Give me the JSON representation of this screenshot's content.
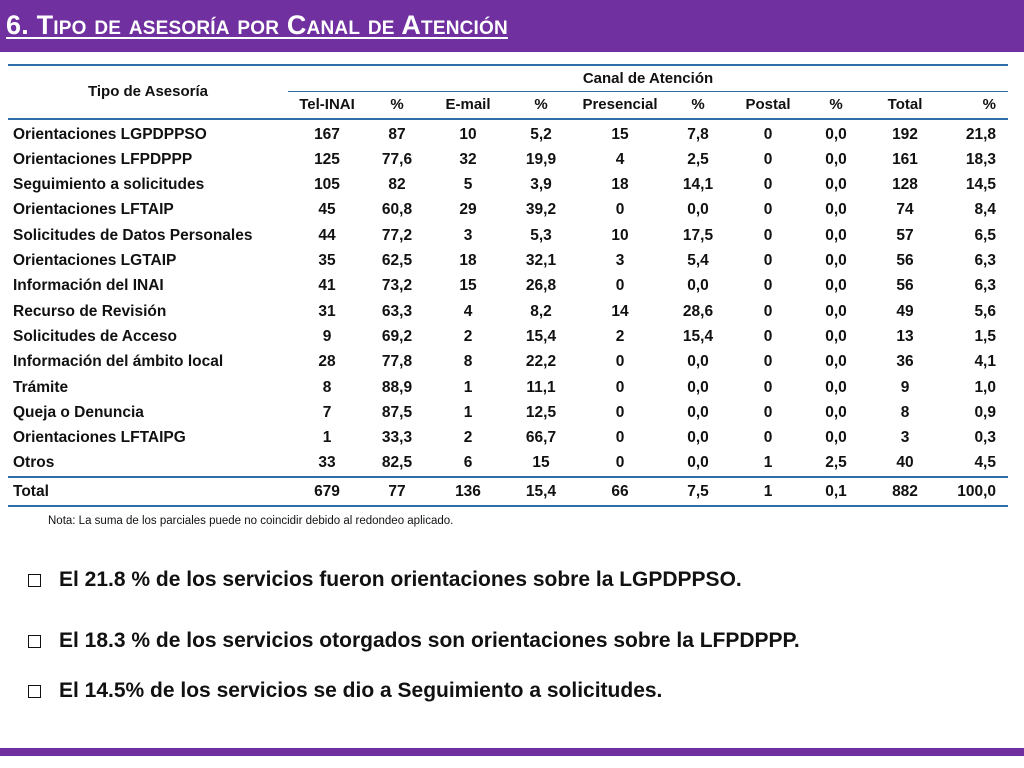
{
  "title": "6. Tipo de asesoría por Canal de Atención",
  "colors": {
    "brand": "#7030a0",
    "rule": "#2f6ea9"
  },
  "table": {
    "row_header": "Tipo de Asesoría",
    "group_header": "Canal de Atención",
    "columns": [
      "Tel-INAI",
      "%",
      "E-mail",
      "%",
      "Presencial",
      "%",
      "Postal",
      "%",
      "Total",
      "%"
    ],
    "rows": [
      {
        "label": "Orientaciones LGPDPPSO",
        "values": [
          "167",
          "87",
          "10",
          "5,2",
          "15",
          "7,8",
          "0",
          "0,0",
          "192",
          "21,8"
        ]
      },
      {
        "label": "Orientaciones LFPDPPP",
        "values": [
          "125",
          "77,6",
          "32",
          "19,9",
          "4",
          "2,5",
          "0",
          "0,0",
          "161",
          "18,3"
        ]
      },
      {
        "label": "Seguimiento a solicitudes",
        "values": [
          "105",
          "82",
          "5",
          "3,9",
          "18",
          "14,1",
          "0",
          "0,0",
          "128",
          "14,5"
        ]
      },
      {
        "label": "Orientaciones LFTAIP",
        "values": [
          "45",
          "60,8",
          "29",
          "39,2",
          "0",
          "0,0",
          "0",
          "0,0",
          "74",
          "8,4"
        ]
      },
      {
        "label": "Solicitudes de Datos Personales",
        "values": [
          "44",
          "77,2",
          "3",
          "5,3",
          "10",
          "17,5",
          "0",
          "0,0",
          "57",
          "6,5"
        ]
      },
      {
        "label": "Orientaciones LGTAIP",
        "values": [
          "35",
          "62,5",
          "18",
          "32,1",
          "3",
          "5,4",
          "0",
          "0,0",
          "56",
          "6,3"
        ]
      },
      {
        "label": "Información del INAI",
        "values": [
          "41",
          "73,2",
          "15",
          "26,8",
          "0",
          "0,0",
          "0",
          "0,0",
          "56",
          "6,3"
        ]
      },
      {
        "label": "Recurso de Revisión",
        "values": [
          "31",
          "63,3",
          "4",
          "8,2",
          "14",
          "28,6",
          "0",
          "0,0",
          "49",
          "5,6"
        ]
      },
      {
        "label": "Solicitudes de Acceso",
        "values": [
          "9",
          "69,2",
          "2",
          "15,4",
          "2",
          "15,4",
          "0",
          "0,0",
          "13",
          "1,5"
        ]
      },
      {
        "label": "Información del ámbito local",
        "values": [
          "28",
          "77,8",
          "8",
          "22,2",
          "0",
          "0,0",
          "0",
          "0,0",
          "36",
          "4,1"
        ]
      },
      {
        "label": "Trámite",
        "values": [
          "8",
          "88,9",
          "1",
          "11,1",
          "0",
          "0,0",
          "0",
          "0,0",
          "9",
          "1,0"
        ]
      },
      {
        "label": "Queja o Denuncia",
        "values": [
          "7",
          "87,5",
          "1",
          "12,5",
          "0",
          "0,0",
          "0",
          "0,0",
          "8",
          "0,9"
        ]
      },
      {
        "label": "Orientaciones LFTAIPG",
        "values": [
          "1",
          "33,3",
          "2",
          "66,7",
          "0",
          "0,0",
          "0",
          "0,0",
          "3",
          "0,3"
        ]
      },
      {
        "label": "Otros",
        "values": [
          "33",
          "82,5",
          "6",
          "15",
          "0",
          "0,0",
          "1",
          "2,5",
          "40",
          "4,5"
        ]
      }
    ],
    "total": {
      "label": "Total",
      "values": [
        "679",
        "77",
        "136",
        "15,4",
        "66",
        "7,5",
        "1",
        "0,1",
        "882",
        "100,0"
      ]
    }
  },
  "note": "Nota: La suma de los parciales puede no coincidir debido al redondeo aplicado.",
  "bullets": [
    "El 21.8 % de los servicios fueron orientaciones sobre la LGPDPPSO.",
    "El 18.3 % de los servicios otorgados son orientaciones sobre la LFPDPPP.",
    "El 14.5% de los servicios se dio a Seguimiento a solicitudes."
  ]
}
